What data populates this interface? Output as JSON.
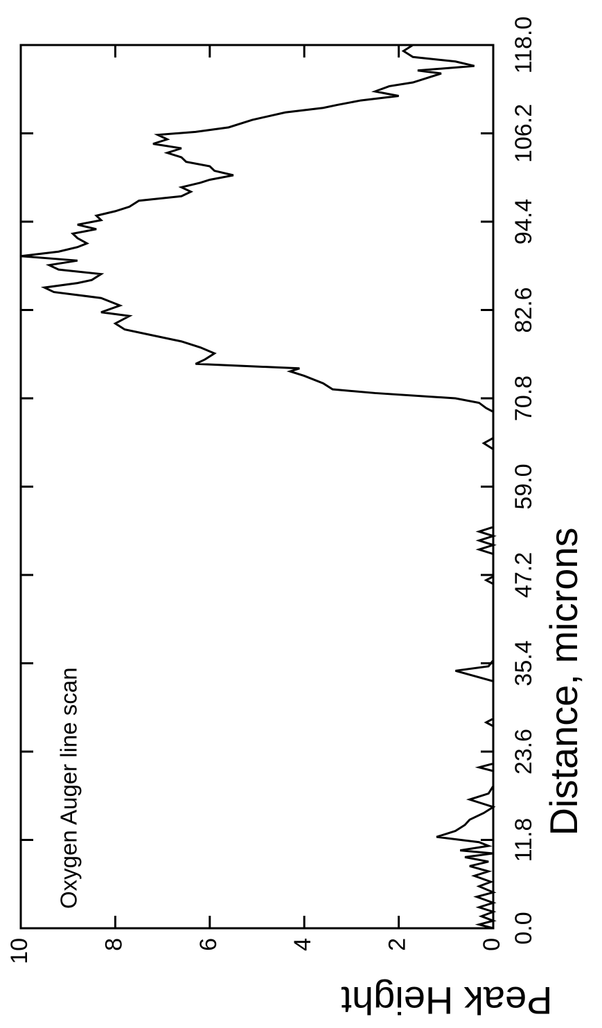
{
  "chart_data": {
    "type": "line",
    "annotation": "Oxygen Auger line scan",
    "x_label": "Distance, microns",
    "y_label": "Peak Height",
    "color": "#000000",
    "rotated": true,
    "xlim": [
      0,
      118
    ],
    "ylim": [
      0,
      10
    ],
    "xticks": [
      {
        "value": 0,
        "label": "0.0"
      },
      {
        "value": 11.8,
        "label": "11.8"
      },
      {
        "value": 23.6,
        "label": "23.6"
      },
      {
        "value": 35.4,
        "label": "35.4"
      },
      {
        "value": 47.2,
        "label": "47.2"
      },
      {
        "value": 59,
        "label": "59.0"
      },
      {
        "value": 70.8,
        "label": "70.8"
      },
      {
        "value": 82.6,
        "label": "82.6"
      },
      {
        "value": 94.4,
        "label": "94.4"
      },
      {
        "value": 106.2,
        "label": "106.2"
      },
      {
        "value": 118,
        "label": "118.0"
      }
    ],
    "yticks": [
      0,
      2,
      4,
      6,
      8,
      10
    ],
    "x": [
      0,
      0.5,
      1,
      1.6,
      2.2,
      2.8,
      3.4,
      4.2,
      4.8,
      5.6,
      6.2,
      7,
      7.6,
      8.3,
      8.9,
      9.5,
      10,
      10.4,
      11,
      11.5,
      12.2,
      13,
      13.8,
      14.5,
      15.4,
      16.2,
      17.2,
      18,
      19,
      21,
      21.5,
      22,
      27,
      27.5,
      28,
      33,
      34.4,
      35,
      35.8,
      46,
      46.5,
      47,
      50,
      50.6,
      51.2,
      51.8,
      52.4,
      53,
      53.6,
      64,
      64.8,
      65.5,
      69,
      69.5,
      70.2,
      70.8,
      71.5,
      72,
      72.8,
      73.8,
      74.4,
      74.8,
      75.4,
      76,
      76.8,
      77.6,
      78.4,
      79.2,
      80,
      80.8,
      81.8,
      82.3,
      83.2,
      84.2,
      85,
      85.6,
      86.2,
      86.6,
      87.4,
      88,
      88.6,
      89.2,
      89.8,
      90.4,
      91,
      91.5,
      92.2,
      92.8,
      93.4,
      94,
      94.6,
      95.2,
      95.8,
      96.4,
      97.2,
      97.8,
      98.4,
      99,
      99.6,
      100,
      100.6,
      101.2,
      101.8,
      102.4,
      103,
      103.6,
      104.2,
      104.8,
      105.4,
      106,
      106.4,
      107,
      108,
      109,
      109.6,
      110,
      110.6,
      111.2,
      111.8,
      112.5,
      113,
      113.6,
      114.2,
      114.6,
      115.2,
      115.8,
      116.4,
      117.2,
      118
    ],
    "values": [
      0,
      0.3,
      0,
      0.25,
      0,
      0.3,
      0,
      0.35,
      0,
      0.3,
      0.05,
      0.4,
      0.1,
      0.5,
      0.1,
      0.6,
      0,
      0.7,
      0.1,
      0.3,
      1.2,
      0.8,
      0.6,
      0.5,
      0.2,
      0,
      0.5,
      0.1,
      0,
      0,
      0.3,
      0,
      0,
      0.15,
      0,
      0,
      0.8,
      0.1,
      0,
      0,
      0.15,
      0,
      0,
      0.3,
      0,
      0.3,
      0,
      0.3,
      0,
      0,
      0.2,
      0,
      0,
      0.15,
      0.3,
      0.8,
      2.5,
      3.4,
      3.6,
      4.0,
      4.3,
      4.1,
      6.3,
      6.1,
      5.9,
      6.2,
      6.6,
      7.2,
      7.8,
      8.0,
      7.7,
      8.3,
      7.9,
      8.3,
      9.3,
      9.5,
      8.8,
      8.5,
      8.3,
      9.2,
      9.4,
      8.8,
      10.0,
      9.2,
      8.8,
      8.6,
      8.8,
      8.9,
      8.4,
      8.8,
      8.3,
      8.4,
      8.0,
      7.7,
      7.5,
      6.6,
      6.4,
      6.6,
      6.2,
      6.0,
      5.5,
      5.9,
      6.0,
      6.5,
      6.6,
      6.9,
      6.6,
      7.2,
      6.9,
      7.1,
      6.3,
      5.6,
      5.1,
      4.4,
      3.6,
      3.3,
      2.8,
      2.0,
      2.5,
      2.2,
      1.7,
      1.4,
      1.1,
      1.6,
      0.4,
      0.8,
      1.7,
      1.9,
      1.7
    ]
  }
}
